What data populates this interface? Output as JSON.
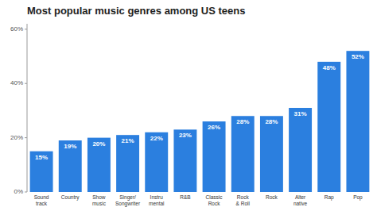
{
  "chart_data": {
    "type": "bar",
    "title": "Most popular music genres among US teens",
    "categories": [
      "Sound\ntrack",
      "Country",
      "Show\nmusic",
      "Singer/\nSongwriter",
      "Instru\nmental",
      "R&B",
      "Classic\nRock",
      "Rock\n& Roll",
      "Rock",
      "Alter\nnative",
      "Rap",
      "Pop"
    ],
    "values": [
      15,
      19,
      20,
      21,
      22,
      23,
      26,
      28,
      28,
      31,
      48,
      52
    ],
    "value_labels": [
      "15%",
      "19%",
      "20%",
      "21%",
      "22%",
      "23%",
      "26%",
      "28%",
      "28%",
      "31%",
      "48%",
      "52%"
    ],
    "data_labels": true,
    "color": "#2b7fdf",
    "ylim": [
      0,
      62
    ],
    "yticks": [
      {
        "value": 0,
        "label": "0%"
      },
      {
        "value": 20,
        "label": "20%"
      },
      {
        "value": 40,
        "label": "40%"
      },
      {
        "value": 60,
        "label": "60%"
      }
    ],
    "grid": false
  }
}
